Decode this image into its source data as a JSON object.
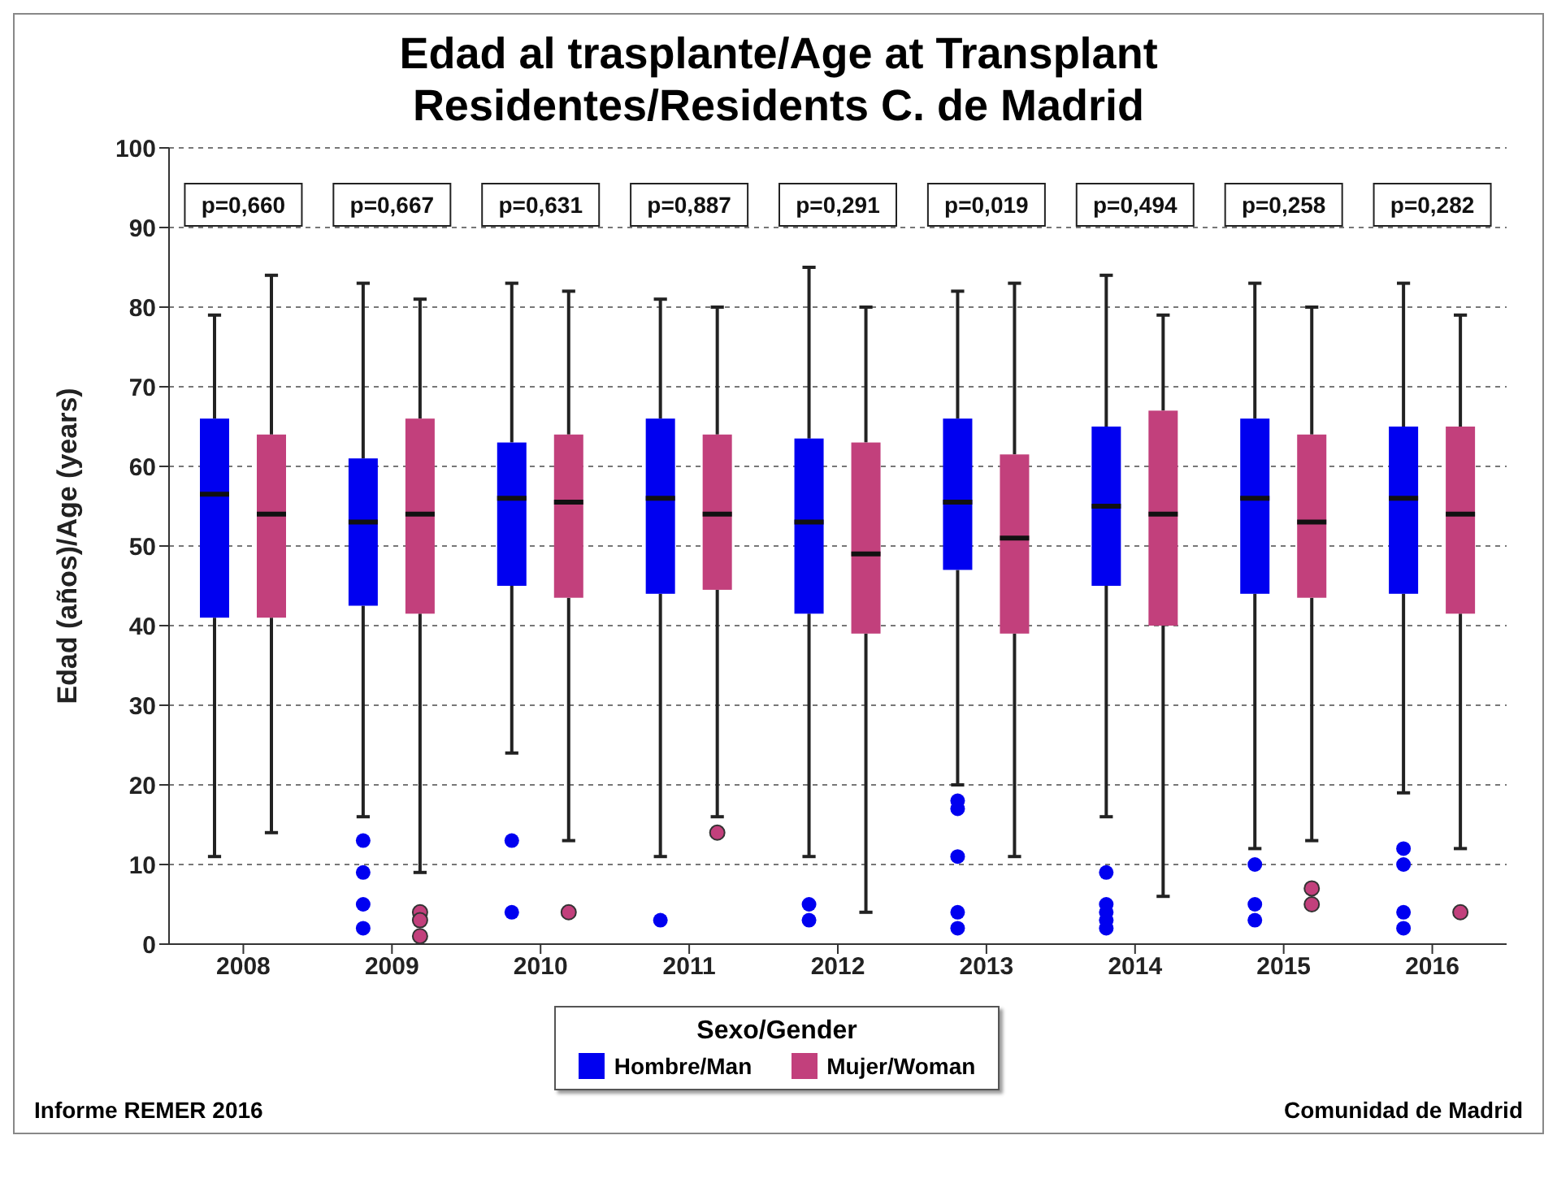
{
  "chart_data": {
    "type": "box",
    "title": "Edad al trasplante/Age at Transplant",
    "subtitle": "Residentes/Residents C. de Madrid",
    "ylabel": "Edad (años)/Age (years)",
    "legend_title": "Sexo/Gender",
    "categories": [
      "2008",
      "2009",
      "2010",
      "2011",
      "2012",
      "2013",
      "2014",
      "2015",
      "2016"
    ],
    "series": [
      {
        "name": "Hombre/Man",
        "color": "#0000f0",
        "boxes": [
          {
            "low": 11,
            "q1": 41,
            "median": 56.5,
            "q3": 66,
            "high": 79
          },
          {
            "low": 16,
            "q1": 42.5,
            "median": 53,
            "q3": 61,
            "high": 83,
            "outliers": [
              13,
              9,
              5,
              2
            ]
          },
          {
            "low": 24,
            "q1": 45,
            "median": 56,
            "q3": 63,
            "high": 83,
            "outliers": [
              13,
              4
            ]
          },
          {
            "low": 11,
            "q1": 44,
            "median": 56,
            "q3": 66,
            "high": 81,
            "outliers": [
              3
            ]
          },
          {
            "low": 11,
            "q1": 41.5,
            "median": 53,
            "q3": 63.5,
            "high": 85,
            "outliers": [
              5,
              3
            ]
          },
          {
            "low": 20,
            "q1": 47,
            "median": 55.5,
            "q3": 66,
            "high": 82,
            "outliers": [
              18,
              17,
              11,
              4,
              2
            ]
          },
          {
            "low": 16,
            "q1": 45,
            "median": 55,
            "q3": 65,
            "high": 84,
            "outliers": [
              9,
              5,
              4,
              3,
              2
            ]
          },
          {
            "low": 12,
            "q1": 44,
            "median": 56,
            "q3": 66,
            "high": 83,
            "outliers": [
              10,
              5,
              3
            ]
          },
          {
            "low": 19,
            "q1": 44,
            "median": 56,
            "q3": 65,
            "high": 83,
            "outliers": [
              12,
              10,
              4,
              2
            ]
          }
        ]
      },
      {
        "name": "Mujer/Woman",
        "color": "#c2407c",
        "boxes": [
          {
            "low": 14,
            "q1": 41,
            "median": 54,
            "q3": 64,
            "high": 84
          },
          {
            "low": 9,
            "q1": 41.5,
            "median": 54,
            "q3": 66,
            "high": 81,
            "outliers": [
              4,
              3,
              1
            ]
          },
          {
            "low": 13,
            "q1": 43.5,
            "median": 55.5,
            "q3": 64,
            "high": 82,
            "outliers": [
              4
            ]
          },
          {
            "low": 16,
            "q1": 44.5,
            "median": 54,
            "q3": 64,
            "high": 80,
            "outliers": [
              14
            ]
          },
          {
            "low": 4,
            "q1": 39,
            "median": 49,
            "q3": 63,
            "high": 80
          },
          {
            "low": 11,
            "q1": 39,
            "median": 51,
            "q3": 61.5,
            "high": 83
          },
          {
            "low": 6,
            "q1": 40,
            "median": 54,
            "q3": 67,
            "high": 79
          },
          {
            "low": 13,
            "q1": 43.5,
            "median": 53,
            "q3": 64,
            "high": 80,
            "outliers": [
              7,
              5
            ]
          },
          {
            "low": 12,
            "q1": 41.5,
            "median": 54,
            "q3": 65,
            "high": 79,
            "outliers": [
              4
            ]
          }
        ]
      }
    ],
    "ylim": [
      0,
      100
    ],
    "yticks": [
      0,
      10,
      20,
      30,
      40,
      50,
      60,
      70,
      80,
      90,
      100
    ],
    "grid": "y",
    "legend": "bottom",
    "annotations": [
      "p=0,660",
      "p=0,667",
      "p=0,631",
      "p=0,887",
      "p=0,291",
      "p=0,019",
      "p=0,494",
      "p=0,258",
      "p=0,282",
      "Informe REMER 2016",
      "Comunidad de Madrid"
    ]
  }
}
